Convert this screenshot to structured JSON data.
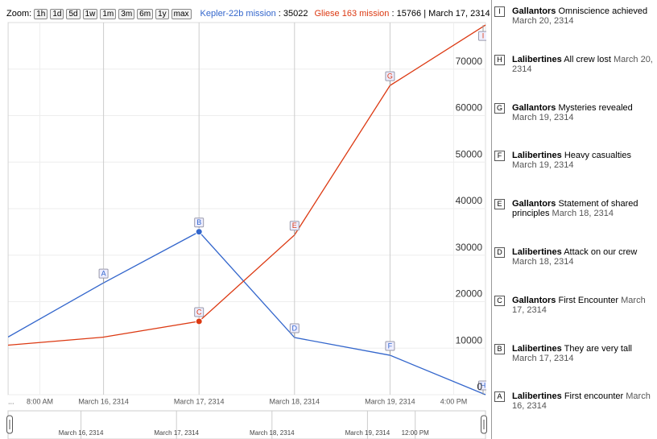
{
  "zoom_label": "Zoom:",
  "zoom_buttons": [
    "1h",
    "1d",
    "5d",
    "1w",
    "1m",
    "3m",
    "6m",
    "1y",
    "max"
  ],
  "legend_date": "March 17, 2314",
  "chart_data": {
    "type": "line",
    "x": [
      15,
      16,
      17,
      18,
      19,
      20
    ],
    "xlim": [
      15,
      20
    ],
    "xticks": [
      {
        "value": 15,
        "label": "..."
      },
      {
        "value": 15.333,
        "label": "8:00 AM"
      },
      {
        "value": 16,
        "label": "March 16, 2314"
      },
      {
        "value": 17,
        "label": "March 17, 2314"
      },
      {
        "value": 18,
        "label": "March 18, 2314"
      },
      {
        "value": 19,
        "label": "March 19, 2314"
      },
      {
        "value": 19.667,
        "label": "4:00 PM"
      }
    ],
    "ylim": [
      0,
      80000
    ],
    "yticks": [
      0,
      10000,
      20000,
      30000,
      40000,
      50000,
      60000,
      70000
    ],
    "grid": true,
    "series": [
      {
        "name": "Kepler-22b mission",
        "color": "#3366cc",
        "values": [
          12400,
          24045,
          35022,
          12284,
          8476,
          0
        ],
        "flags": [
          null,
          "A",
          "B",
          "D",
          "F",
          "H"
        ]
      },
      {
        "name": "Gliese 163 mission",
        "color": "#dc3912",
        "values": [
          10645,
          12374,
          15766,
          34334,
          66467,
          79463
        ],
        "flags": [
          null,
          null,
          "C",
          "E",
          "G",
          "I"
        ]
      }
    ],
    "nav_xticks": [
      {
        "value": 16,
        "label": "March 16, 2314"
      },
      {
        "value": 17,
        "label": "March 17, 2314"
      },
      {
        "value": 18,
        "label": "March 18, 2314"
      },
      {
        "value": 19,
        "label": "March 19, 2314"
      },
      {
        "value": 19.5,
        "label": "12:00 PM"
      }
    ]
  },
  "annotations": [
    {
      "letter": "I",
      "title": "Gallantors",
      "text": "Omniscience achieved",
      "date": "March 20, 2314"
    },
    {
      "letter": "H",
      "title": "Lalibertines",
      "text": "All crew lost",
      "date": "March 20, 2314"
    },
    {
      "letter": "G",
      "title": "Gallantors",
      "text": "Mysteries revealed",
      "date": "March 19, 2314"
    },
    {
      "letter": "F",
      "title": "Lalibertines",
      "text": "Heavy casualties",
      "date": "March 19, 2314"
    },
    {
      "letter": "E",
      "title": "Gallantors",
      "text": "Statement of shared principles",
      "date": "March 18, 2314"
    },
    {
      "letter": "D",
      "title": "Lalibertines",
      "text": "Attack on our crew",
      "date": "March 18, 2314"
    },
    {
      "letter": "C",
      "title": "Gallantors",
      "text": "First Encounter",
      "date": "March 17, 2314"
    },
    {
      "letter": "B",
      "title": "Lalibertines",
      "text": "They are very tall",
      "date": "March 17, 2314"
    },
    {
      "letter": "A",
      "title": "Lalibertines",
      "text": "First encounter",
      "date": "March 16, 2314"
    }
  ]
}
